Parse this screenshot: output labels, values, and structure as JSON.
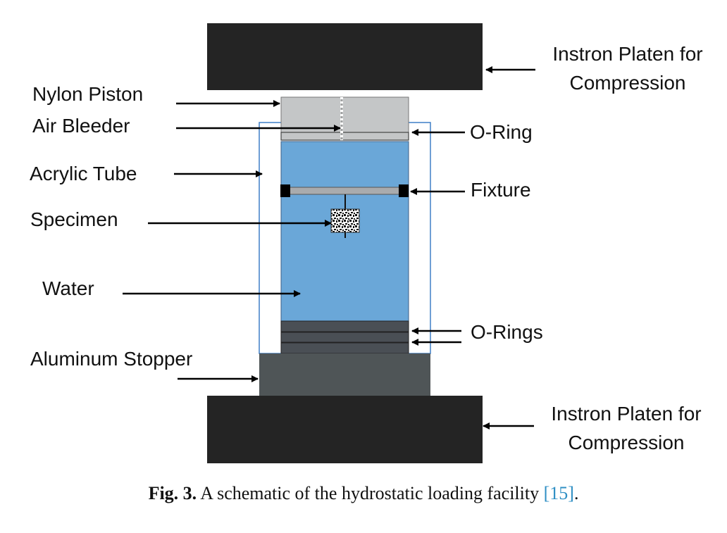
{
  "labels": {
    "top_platen_line1": "Instron Platen for",
    "top_platen_line2": "Compression",
    "nylon_piston": "Nylon Piston",
    "air_bleeder": "Air Bleeder",
    "o_ring": "O-Ring",
    "acrylic_tube": "Acrylic Tube",
    "fixture": "Fixture",
    "specimen": "Specimen",
    "water": "Water",
    "o_rings": "O-Rings",
    "aluminum_stopper": "Aluminum Stopper",
    "bottom_platen_line1": "Instron Platen for",
    "bottom_platen_line2": "Compression"
  },
  "caption": {
    "fig_label": "Fig. 3.",
    "text": " A schematic of the hydrostatic loading facility ",
    "ref": "[15]",
    "end": "."
  },
  "colors": {
    "platen": "#242424",
    "piston": "#c4c6c7",
    "water": "#6aa7d8",
    "tube_outline": "#3f7fc7",
    "o_rings": "#4a4f55",
    "stopper": "#4f5557",
    "fixture_bar": "#a9abad",
    "caption_ref": "#2f8fc4"
  }
}
